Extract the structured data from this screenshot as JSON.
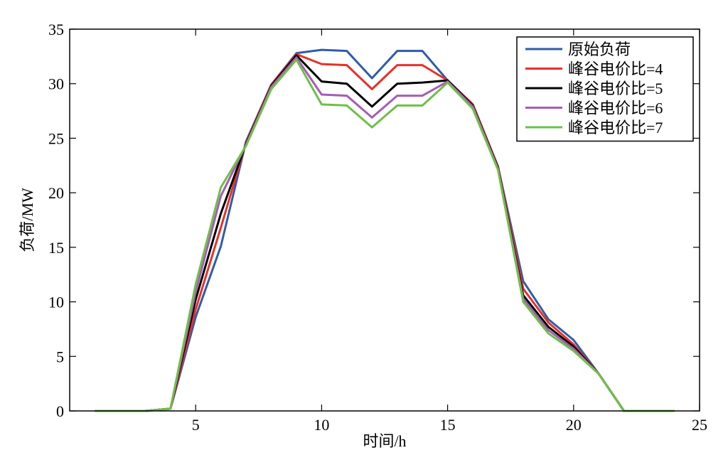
{
  "chart_data": {
    "type": "line",
    "xlabel": "时间/h",
    "ylabel": "负荷/MW",
    "xlim": [
      0,
      25
    ],
    "ylim": [
      0,
      35
    ],
    "xticks": [
      5,
      10,
      15,
      20,
      25
    ],
    "yticks": [
      0,
      5,
      10,
      15,
      20,
      25,
      30,
      35
    ],
    "grid": false,
    "legend_position": "top-right",
    "x": [
      1,
      2,
      3,
      4,
      5,
      6,
      7,
      8,
      9,
      10,
      11,
      12,
      13,
      14,
      15,
      16,
      17,
      18,
      19,
      20,
      21,
      22,
      23,
      24
    ],
    "series": [
      {
        "name": "原始负荷",
        "color": "#2f5ca8",
        "values": [
          0,
          0,
          0,
          0.2,
          8.6,
          15.1,
          24.7,
          29.9,
          32.8,
          33.1,
          33.0,
          30.5,
          33.0,
          33.0,
          30.3,
          28.1,
          22.4,
          11.9,
          8.4,
          6.5,
          3.4,
          0,
          0,
          0
        ]
      },
      {
        "name": "峰谷电价比=4",
        "color": "#e8302a",
        "values": [
          0,
          0,
          0,
          0.2,
          9.3,
          16.8,
          24.6,
          29.9,
          32.7,
          31.8,
          31.7,
          29.5,
          31.7,
          31.7,
          30.3,
          28.1,
          22.4,
          11.2,
          8.1,
          6.1,
          3.4,
          0,
          0,
          0
        ]
      },
      {
        "name": "峰谷电价比=5",
        "color": "#000000",
        "values": [
          0,
          0,
          0,
          0.2,
          10.2,
          18.1,
          24.5,
          29.8,
          32.6,
          30.2,
          30.0,
          27.9,
          30.0,
          30.1,
          30.3,
          28.0,
          22.3,
          10.6,
          7.7,
          5.9,
          3.4,
          0,
          0,
          0
        ]
      },
      {
        "name": "峰谷电价比=6",
        "color": "#a55cb5",
        "values": [
          0,
          0,
          0,
          0.2,
          10.9,
          19.7,
          24.4,
          29.7,
          32.4,
          29.0,
          28.9,
          26.9,
          28.9,
          28.9,
          30.2,
          27.9,
          22.2,
          10.3,
          7.4,
          5.7,
          3.4,
          0,
          0,
          0
        ]
      },
      {
        "name": "峰谷电价比=7",
        "color": "#6ebf47",
        "values": [
          0,
          0,
          0,
          0.2,
          11.6,
          20.5,
          24.3,
          29.5,
          32.2,
          28.1,
          28.0,
          26.0,
          28.0,
          28.0,
          30.1,
          27.7,
          22.1,
          10.0,
          7.1,
          5.5,
          3.4,
          0,
          0,
          0
        ]
      }
    ]
  }
}
